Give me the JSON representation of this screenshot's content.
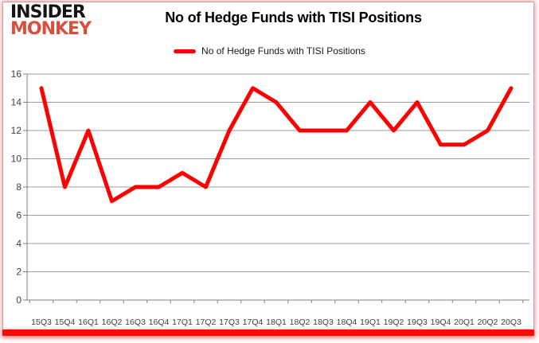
{
  "logo": {
    "line1": "INSIDER",
    "line2": "MONKEY",
    "line2_color": "#db4e3c"
  },
  "header": {
    "title": "No of Hedge Funds with TISI Positions"
  },
  "legend": {
    "label": "No of Hedge Funds with TISI Positions",
    "line_color": "#fe0000"
  },
  "colors": {
    "series_red": "#fe0000",
    "gridline_gray": "#9b9b9b",
    "axis_gray": "#7f7f7f",
    "tick_text": "#3f3f3f",
    "bottom_bar_red": "#fb0b03"
  },
  "chart_data": {
    "type": "line",
    "title": "No of Hedge Funds with TISI Positions",
    "categories": [
      "15Q3",
      "15Q4",
      "16Q1",
      "16Q2",
      "16Q3",
      "16Q4",
      "17Q1",
      "17Q2",
      "17Q3",
      "17Q4",
      "18Q1",
      "18Q2",
      "18Q3",
      "18Q4",
      "19Q1",
      "19Q2",
      "19Q3",
      "19Q4",
      "20Q1",
      "20Q2",
      "20Q3"
    ],
    "series": [
      {
        "name": "No of Hedge Funds with TISI Positions",
        "color": "#fe0000",
        "values": [
          15,
          8,
          12,
          7,
          8,
          8,
          9,
          8,
          12,
          15,
          14,
          12,
          12,
          12,
          14,
          12,
          14,
          11,
          11,
          12,
          15
        ]
      }
    ],
    "xlabel": "",
    "ylabel": "",
    "ylim": [
      0,
      16
    ],
    "yticks": [
      0,
      2,
      4,
      6,
      8,
      10,
      12,
      14,
      16
    ],
    "grid": true,
    "legend_position": "top"
  }
}
